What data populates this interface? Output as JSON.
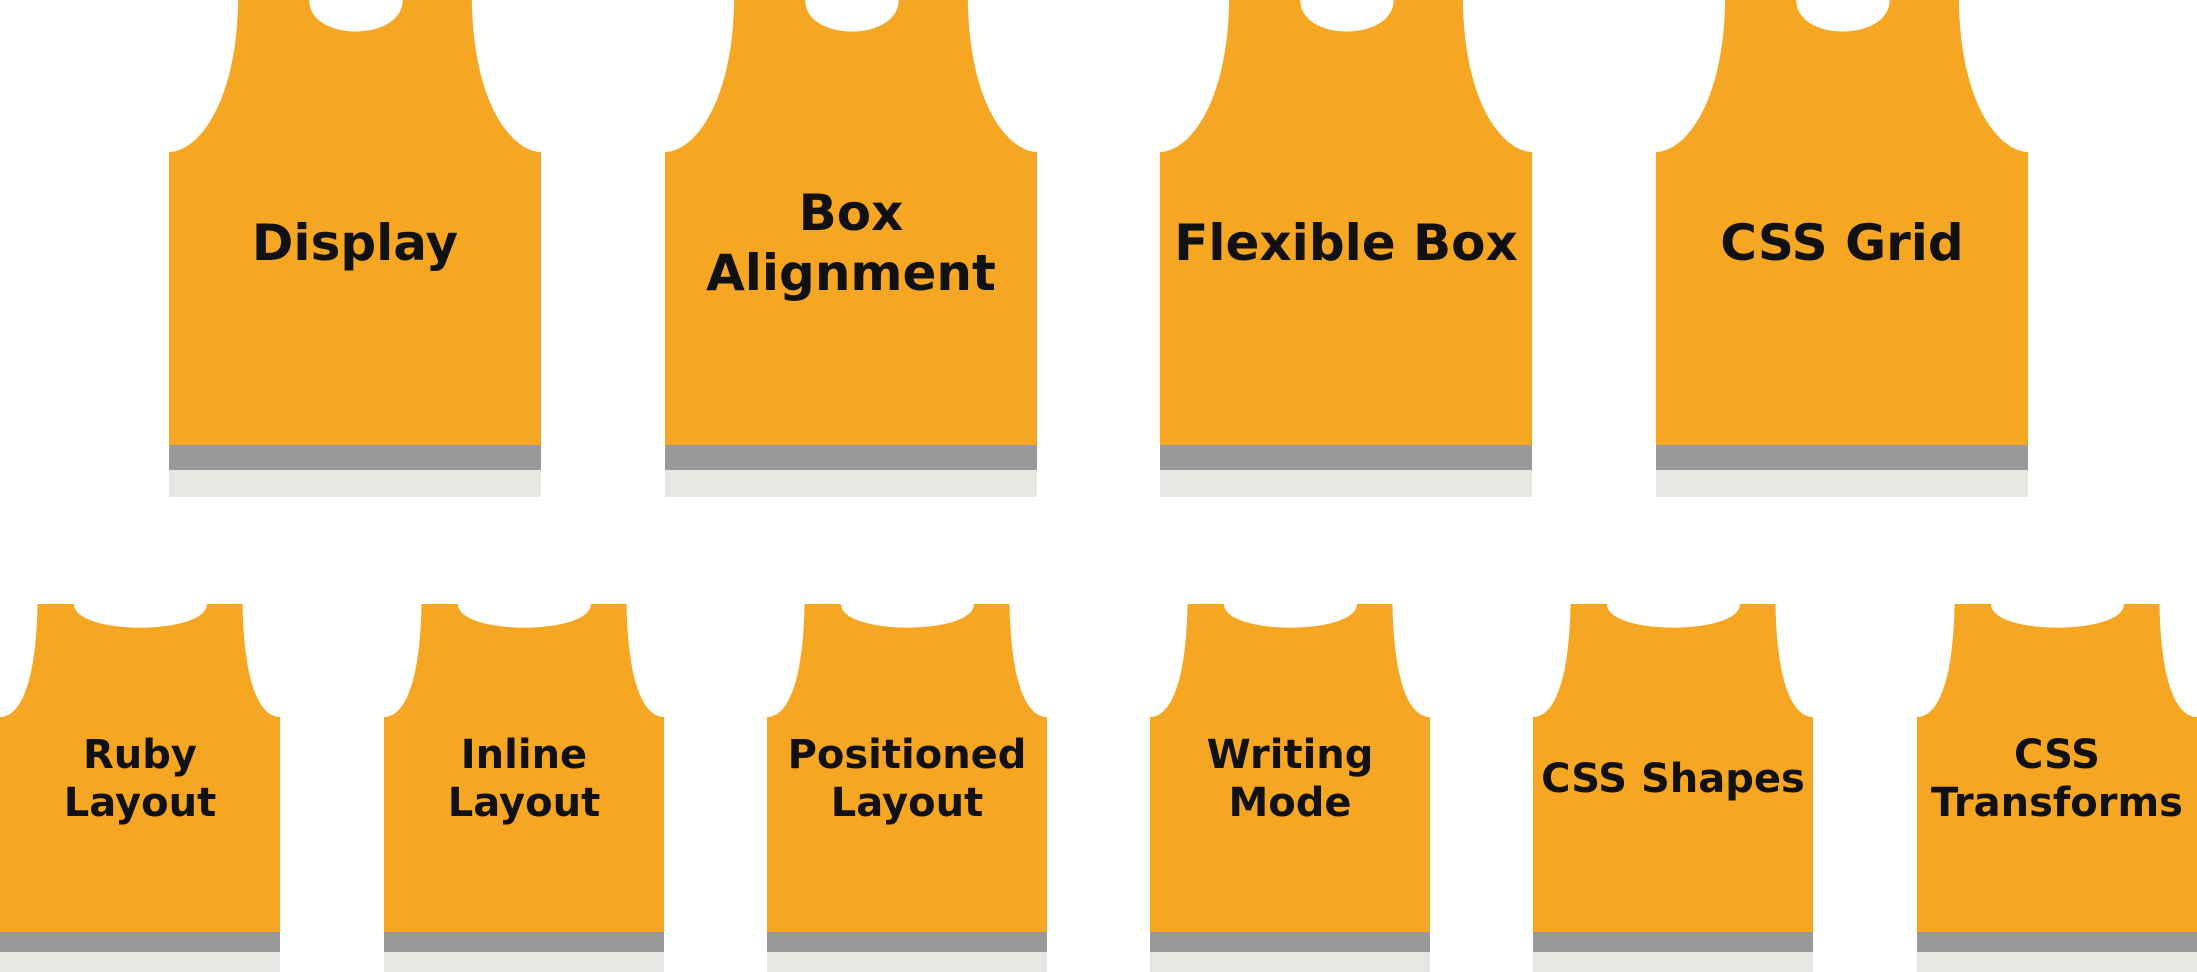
{
  "colors": {
    "shirt": "#f5a623",
    "band": "#999999",
    "hem": "#e6e6e3",
    "text": "#111111",
    "background": "#ffffff"
  },
  "rows": [
    {
      "size": "big",
      "jerseys": [
        {
          "id": "display",
          "label": "Display"
        },
        {
          "id": "box-alignment",
          "label": "Box\nAlignment"
        },
        {
          "id": "flexible-box",
          "label": "Flexible Box"
        },
        {
          "id": "css-grid",
          "label": "CSS Grid"
        }
      ]
    },
    {
      "size": "small",
      "jerseys": [
        {
          "id": "ruby-layout",
          "label": "Ruby\nLayout"
        },
        {
          "id": "inline-layout",
          "label": "Inline\nLayout"
        },
        {
          "id": "positioned-layout",
          "label": "Positioned\nLayout"
        },
        {
          "id": "writing-mode",
          "label": "Writing\nMode"
        },
        {
          "id": "css-shapes",
          "label": "CSS Shapes"
        },
        {
          "id": "css-transforms",
          "label": "CSS\nTransforms"
        }
      ]
    }
  ]
}
